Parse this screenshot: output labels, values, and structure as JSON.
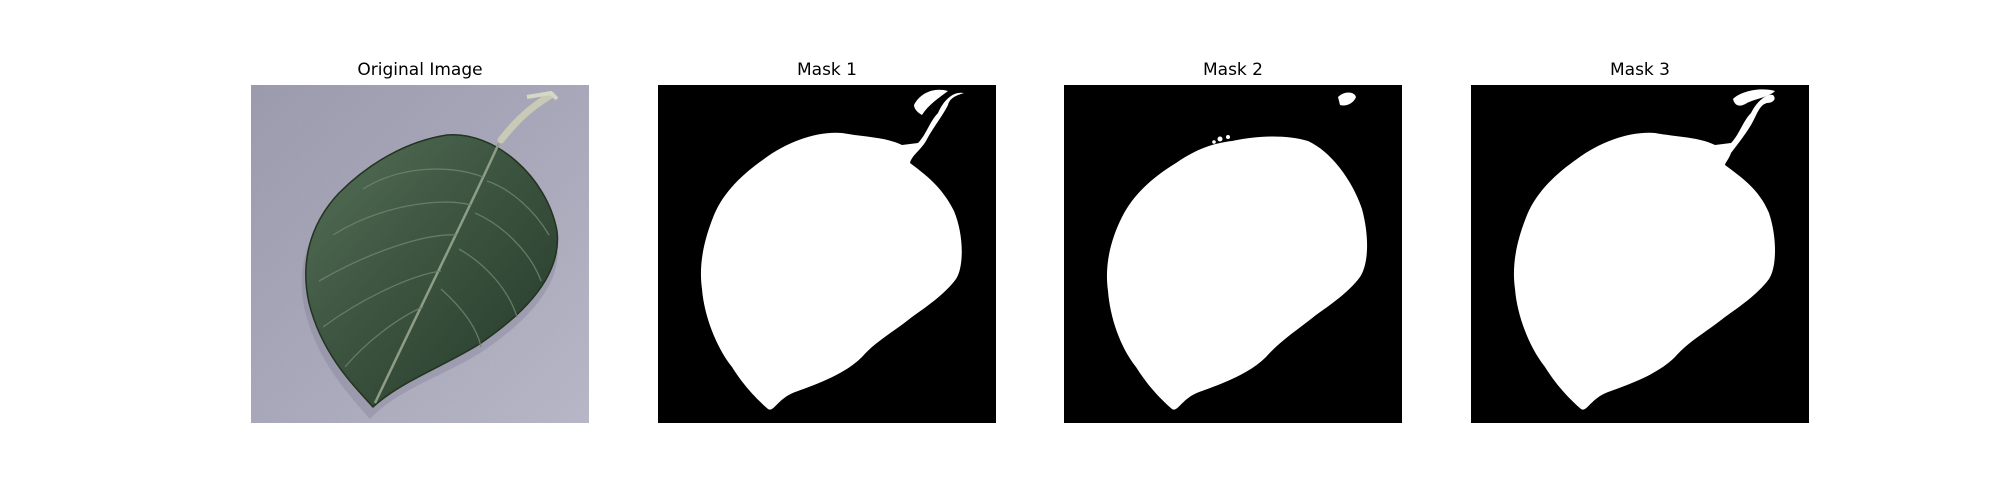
{
  "figure": {
    "panels": [
      {
        "title": "Original Image",
        "kind": "photo"
      },
      {
        "title": "Mask 1",
        "kind": "mask"
      },
      {
        "title": "Mask 2",
        "kind": "mask"
      },
      {
        "title": "Mask 3",
        "kind": "mask"
      }
    ]
  },
  "colors": {
    "background": "#ffffff",
    "mask_background": "#000000",
    "mask_foreground": "#ffffff",
    "photo_background": "#a6a6b8",
    "leaf_dark": "#2b3f2e",
    "leaf_light": "#4e6a52",
    "leaf_vein": "#8e9e86",
    "stem": "#c7c9b5"
  },
  "icons": [
    "leaf-photo",
    "segmentation-mask"
  ]
}
